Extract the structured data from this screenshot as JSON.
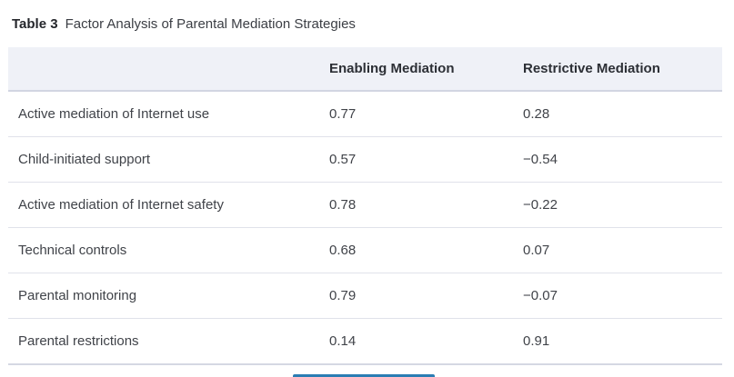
{
  "caption": {
    "label": "Table 3",
    "title": "Factor Analysis of Parental Mediation Strategies"
  },
  "table": {
    "columns": [
      "",
      "Enabling Mediation",
      "Restrictive Mediation"
    ],
    "rows": [
      {
        "label": "Active mediation of Internet use",
        "enabling": "0.77",
        "restrictive": "0.28"
      },
      {
        "label": "Child-initiated support",
        "enabling": "0.57",
        "restrictive": "−0.54"
      },
      {
        "label": "Active mediation of Internet safety",
        "enabling": "0.78",
        "restrictive": "−0.22"
      },
      {
        "label": "Technical controls",
        "enabling": "0.68",
        "restrictive": "0.07"
      },
      {
        "label": "Parental monitoring",
        "enabling": "0.79",
        "restrictive": "−0.07"
      },
      {
        "label": "Parental restrictions",
        "enabling": "0.14",
        "restrictive": "0.91"
      }
    ]
  },
  "colors": {
    "header_background": "#eff1f7",
    "header_border": "#d2d5e2",
    "row_border": "#e0e2ea",
    "body_text": "#404349",
    "accent_blue": "#2b7db3"
  }
}
